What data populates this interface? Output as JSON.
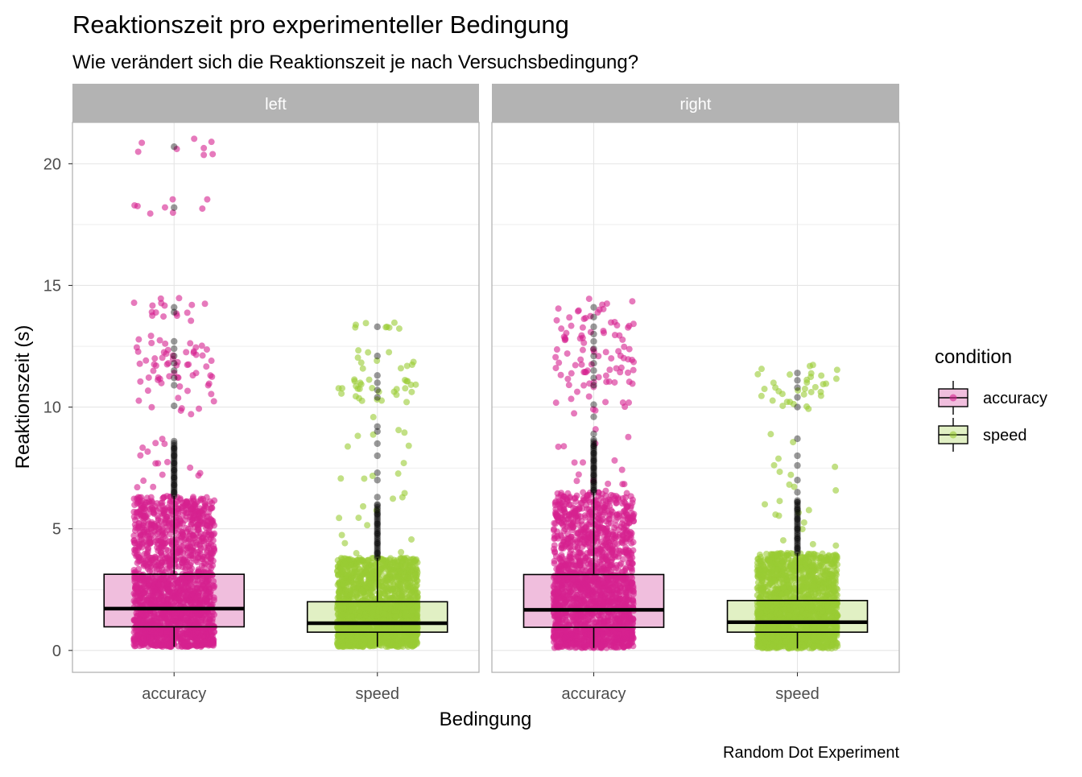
{
  "chart_data": {
    "type": "boxplot",
    "title": "Reaktionszeit pro experimenteller Bedingung",
    "subtitle": "Wie verändert sich die Reaktionszeit je nach Versuchsbedingung?",
    "caption": "Random Dot Experiment",
    "xlabel": "Bedingung",
    "ylabel": "Reaktionszeit (s)",
    "ylim": [
      -0.9,
      21.7
    ],
    "yticks": [
      0,
      5,
      10,
      15,
      20
    ],
    "categories": [
      "accuracy",
      "speed"
    ],
    "grid": true,
    "legend": {
      "title": "condition",
      "position": "right",
      "entries": [
        "accuracy",
        "speed"
      ]
    },
    "colors": {
      "accuracy": "#d6218f",
      "speed": "#99cc33",
      "accuracy_box_fill": "#f0bedd",
      "speed_box_fill": "#e1f0c4",
      "outlier": "#000000",
      "strip": "#b3b3b3",
      "strip_text": "#ffffff"
    },
    "panels": [
      {
        "name": "left",
        "boxes": [
          {
            "category": "accuracy",
            "q1": 0.97,
            "median": 1.72,
            "q3": 3.13,
            "whisker_low": 0.15,
            "whisker_high": 6.35,
            "range_min": 0.15,
            "range_max": 20.7,
            "outliers": [
              6.5,
              6.8,
              7.1,
              7.4,
              7.7,
              8.0,
              8.3,
              8.6,
              10.05,
              10.9,
              11.2,
              11.5,
              11.8,
              12.1,
              12.4,
              12.7,
              13.9,
              14.1,
              18.2,
              20.7
            ]
          },
          {
            "category": "speed",
            "q1": 0.75,
            "median": 1.12,
            "q3": 2.0,
            "whisker_low": 0.15,
            "whisker_high": 3.8,
            "range_min": 0.15,
            "range_max": 13.3,
            "outliers": [
              4.0,
              4.4,
              4.8,
              5.2,
              5.6,
              6.0,
              6.3,
              7.0,
              7.3,
              8.0,
              8.5,
              9.0,
              9.2,
              10.4,
              10.7,
              11.0,
              11.3,
              12.1,
              13.3
            ]
          }
        ]
      },
      {
        "name": "right",
        "boxes": [
          {
            "category": "accuracy",
            "q1": 0.95,
            "median": 1.67,
            "q3": 3.12,
            "whisker_low": 0.1,
            "whisker_high": 6.5,
            "range_min": 0.1,
            "range_max": 14.1,
            "outliers": [
              6.6,
              6.9,
              7.2,
              7.5,
              7.8,
              8.1,
              8.4,
              8.9,
              9.6,
              10.1,
              10.9,
              11.2,
              11.5,
              11.8,
              12.1,
              12.4,
              12.7,
              13.0,
              13.3,
              13.7,
              14.1
            ]
          },
          {
            "category": "speed",
            "q1": 0.75,
            "median": 1.16,
            "q3": 2.05,
            "whisker_low": 0.08,
            "whisker_high": 4.0,
            "range_min": 0.08,
            "range_max": 11.4,
            "outliers": [
              4.2,
              4.6,
              5.0,
              5.4,
              5.8,
              6.1,
              6.5,
              7.0,
              7.6,
              8.0,
              8.7,
              10.0,
              10.4,
              10.8,
              11.1,
              11.4
            ]
          }
        ]
      }
    ]
  }
}
